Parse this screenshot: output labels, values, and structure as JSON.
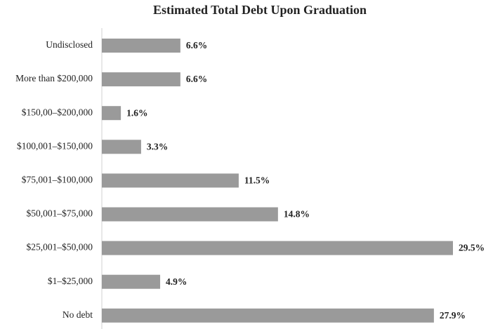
{
  "chart_data": {
    "type": "barh",
    "title": "Estimated Total Debt Upon Graduation",
    "categories": [
      "Undisclosed",
      "More than $200,000",
      "$150,00–$200,000",
      "$100,001–$150,000",
      "$75,001–$100,000",
      "$50,001–$75,000",
      "$25,001–$50,000",
      "$1–$25,000",
      "No debt"
    ],
    "values": [
      6.6,
      6.6,
      1.6,
      3.3,
      11.5,
      14.8,
      29.5,
      4.9,
      27.9
    ],
    "value_labels": [
      "6.6%",
      "6.6%",
      "1.6%",
      "3.3%",
      "11.5%",
      "14.8%",
      "29.5%",
      "4.9%",
      "27.9%"
    ],
    "color": "#9a9a9a"
  }
}
